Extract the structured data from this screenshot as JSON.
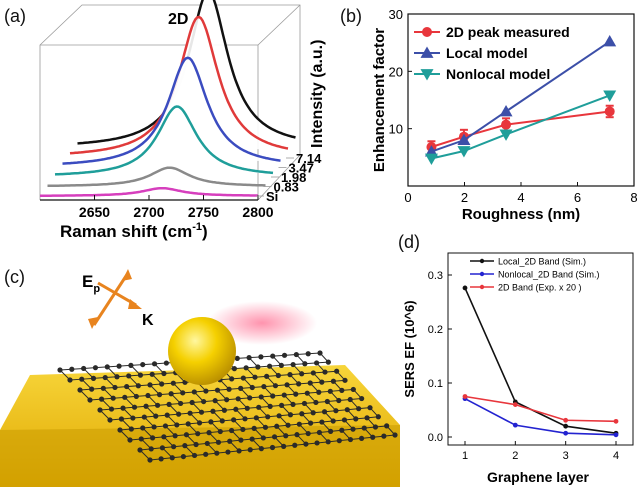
{
  "panel_labels": {
    "a": "(a)",
    "b": "(b)",
    "c": "(c)",
    "d": "(d)"
  },
  "illustration": {
    "field_label": "E",
    "field_subscript": "p",
    "wavevector_label": "K",
    "colors": {
      "substrate": "#f2c40f",
      "sphere": "#f5d000",
      "lattice": "#2a2a2a",
      "laser": "#ff3b6b",
      "arrow": "#e8841f"
    }
  },
  "chart_data": [
    {
      "id": "a",
      "type": "line",
      "style": "waterfall",
      "xlabel": "Raman shift (cm",
      "xlabel_sup": "-1",
      "xlabel_suffix": ")",
      "zlabel": "Intensity (a.u.)",
      "peak_label": "2D",
      "xlim": [
        2600,
        2800
      ],
      "xticks": [
        "2650",
        "2700",
        "2750",
        "2800"
      ],
      "series": [
        {
          "name": "Si",
          "color": "#d63fbd",
          "center": 2712,
          "height": 0.05
        },
        {
          "name": "0.83",
          "color": "#8a8a8a",
          "center": 2712,
          "height": 0.12
        },
        {
          "name": "1.98",
          "color": "#1f9e9a",
          "center": 2712,
          "height": 0.45
        },
        {
          "name": "3.47",
          "color": "#3b4cc0",
          "center": 2715,
          "height": 0.7
        },
        {
          "name": "7.14",
          "color": "#e03a3a",
          "center": 2718,
          "height": 0.9
        },
        {
          "name": "",
          "color": "#111111",
          "center": 2720,
          "height": 1.0
        }
      ]
    },
    {
      "id": "b",
      "type": "line",
      "xlabel": "Roughness (nm)",
      "ylabel": "Enhancement factor",
      "xlim": [
        0,
        8
      ],
      "ylim": [
        0,
        30
      ],
      "xticks": [
        "0",
        "2",
        "4",
        "6",
        "8"
      ],
      "yticks": [
        "10",
        "20",
        "30"
      ],
      "series": [
        {
          "name": "2D peak measured",
          "color": "#e8363c",
          "marker": "circle",
          "x": [
            0.83,
            1.98,
            3.47,
            7.14
          ],
          "y": [
            6.8,
            8.6,
            10.7,
            13.0
          ],
          "err": [
            1.0,
            1.2,
            1.1,
            1.0
          ]
        },
        {
          "name": "Local model",
          "color": "#3c4fa8",
          "marker": "triangle-up",
          "x": [
            0.83,
            1.98,
            3.47,
            7.14
          ],
          "y": [
            6.0,
            8.0,
            13.0,
            25.2
          ]
        },
        {
          "name": "Nonlocal model",
          "color": "#1f9e9a",
          "marker": "triangle-down",
          "x": [
            0.83,
            1.98,
            3.47,
            7.14
          ],
          "y": [
            4.8,
            6.1,
            9.0,
            15.8
          ]
        }
      ]
    },
    {
      "id": "d",
      "type": "line",
      "xlabel": "Graphene layer",
      "ylabel": "SERS EF (10^6)",
      "xlim": [
        1,
        4
      ],
      "ylim": [
        0,
        0.3
      ],
      "xticks": [
        "1",
        "2",
        "3",
        "4"
      ],
      "yticks": [
        "0.0",
        "0.1",
        "0.2",
        "0.3"
      ],
      "series": [
        {
          "name": "Local_2D Band (Sim.)",
          "color": "#111111",
          "x": [
            1,
            2,
            3,
            4
          ],
          "y": [
            0.276,
            0.065,
            0.02,
            0.007
          ]
        },
        {
          "name": "Nonlocal_2D Band (Sim.)",
          "color": "#2323d0",
          "x": [
            1,
            2,
            3,
            4
          ],
          "y": [
            0.071,
            0.022,
            0.007,
            0.004
          ]
        },
        {
          "name": "2D Band (Exp. x 20 )",
          "color": "#e8363c",
          "x": [
            1,
            2,
            3,
            4
          ],
          "y": [
            0.075,
            0.06,
            0.031,
            0.029
          ]
        }
      ]
    }
  ]
}
